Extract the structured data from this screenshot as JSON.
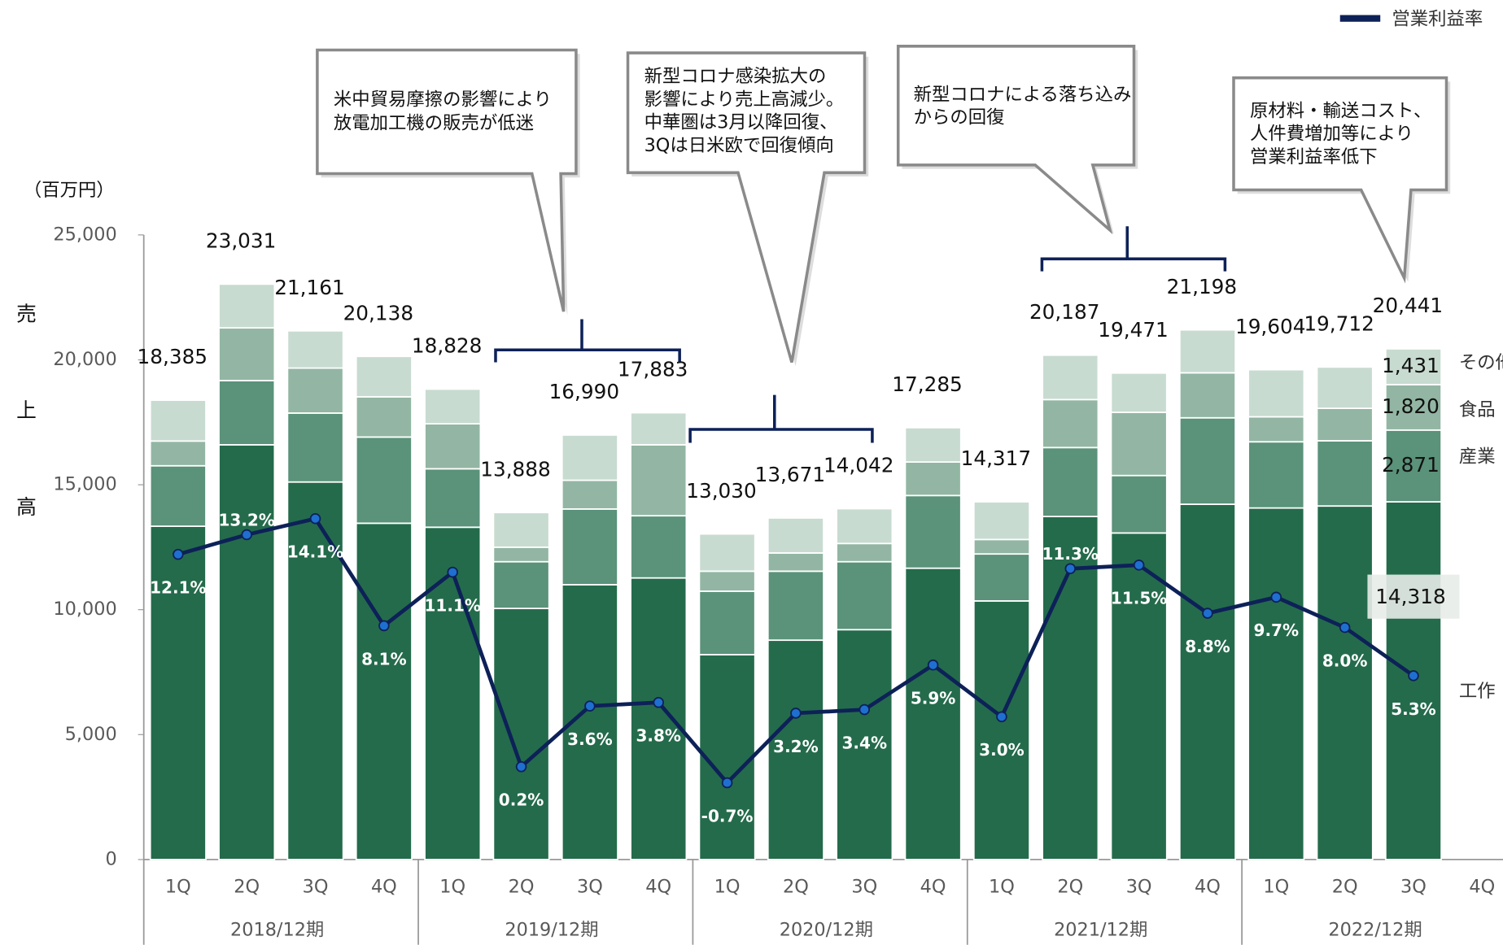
{
  "chart_data": {
    "type": "stacked_bar_line",
    "y_axis_unit": "（百万円）",
    "y_axis_label": "売上高",
    "categories": [
      "1Q",
      "2Q",
      "3Q",
      "4Q",
      "1Q",
      "2Q",
      "3Q",
      "4Q",
      "1Q",
      "2Q",
      "3Q",
      "4Q",
      "1Q",
      "2Q",
      "3Q",
      "4Q",
      "1Q",
      "2Q",
      "3Q",
      "4Q"
    ],
    "groups": [
      "2018/12期",
      "2019/12期",
      "2020/12期",
      "2021/12期",
      "2022/12期"
    ],
    "ylim": [
      0,
      25000
    ],
    "yticks": [
      {
        "value": 0,
        "label": "0"
      },
      {
        "value": 5000,
        "label": "5,000"
      },
      {
        "value": 10000,
        "label": "10,000"
      },
      {
        "value": 15000,
        "label": "15,000"
      },
      {
        "value": 20000,
        "label": "20,000"
      },
      {
        "value": 25000,
        "label": "25,000"
      }
    ],
    "y2lim": [
      -5,
      30
    ],
    "series": [
      {
        "name": "工作",
        "color": "#246b4b",
        "values": [
          13340,
          16600,
          15110,
          13460,
          13300,
          10050,
          11000,
          11270,
          8200,
          8780,
          9200,
          11660,
          10350,
          13730,
          13070,
          14220,
          14070,
          14150,
          14318,
          null
        ],
        "value_labels": [
          null,
          null,
          null,
          null,
          null,
          null,
          null,
          null,
          null,
          null,
          null,
          null,
          null,
          null,
          null,
          null,
          null,
          null,
          "14,318",
          null
        ]
      },
      {
        "name": "産業",
        "color": "#5a927a",
        "values": [
          2420,
          2570,
          2760,
          3450,
          2340,
          1870,
          3030,
          2490,
          2540,
          2760,
          2720,
          2910,
          1880,
          2760,
          2300,
          3460,
          2650,
          2610,
          2871,
          null
        ],
        "value_labels": [
          null,
          null,
          null,
          null,
          null,
          null,
          null,
          null,
          null,
          null,
          null,
          null,
          null,
          null,
          null,
          null,
          null,
          null,
          "2,871",
          null
        ]
      },
      {
        "name": "食品",
        "color": "#92b6a3",
        "values": [
          990,
          2110,
          1800,
          1610,
          1800,
          580,
          1150,
          2840,
          800,
          730,
          730,
          1340,
          580,
          1920,
          2530,
          1800,
          1000,
          1300,
          1820,
          null
        ],
        "value_labels": [
          null,
          null,
          null,
          null,
          null,
          null,
          null,
          null,
          null,
          null,
          null,
          null,
          null,
          null,
          null,
          null,
          null,
          null,
          "1,820",
          null
        ]
      },
      {
        "name": "その他",
        "color": "#c8dbd1",
        "values": [
          1635,
          1751,
          1491,
          1618,
          1388,
          1388,
          1810,
          1283,
          1490,
          1401,
          1392,
          1375,
          1507,
          1777,
          1571,
          1718,
          1884,
          1652,
          1431,
          null
        ],
        "value_labels": [
          null,
          null,
          null,
          null,
          null,
          null,
          null,
          null,
          null,
          null,
          null,
          null,
          null,
          null,
          null,
          null,
          null,
          null,
          "1,431",
          null
        ]
      },
      {
        "name": "営業利益率",
        "color": "#0d2158",
        "marker_color": "#1f6fd0",
        "axis": "y2",
        "type": "line",
        "values": [
          12.1,
          13.2,
          14.1,
          8.1,
          11.1,
          0.2,
          3.6,
          3.8,
          -0.7,
          3.2,
          3.4,
          5.9,
          3.0,
          11.3,
          11.5,
          8.8,
          9.7,
          8.0,
          5.3,
          null
        ],
        "value_labels": [
          "12.1%",
          "13.2%",
          "14.1%",
          "8.1%",
          "11.1%",
          "0.2%",
          "3.6%",
          "3.8%",
          "-0.7%",
          "3.2%",
          "3.4%",
          "5.9%",
          "3.0%",
          "11.3%",
          "11.5%",
          "8.8%",
          "9.7%",
          "8.0%",
          "5.3%",
          null
        ]
      }
    ],
    "totals": {
      "values": [
        18385,
        23031,
        21161,
        20138,
        18828,
        13888,
        16990,
        17883,
        13030,
        13671,
        14042,
        17285,
        14317,
        20187,
        19471,
        21198,
        19604,
        19712,
        20441,
        null
      ],
      "value_labels": [
        "18,385",
        "23,031",
        "21,161",
        "20,138",
        "18,828",
        "13,888",
        "16,990",
        "17,883",
        "13,030",
        "13,671",
        "14,042",
        "17,285",
        "14,317",
        "20,187",
        "19,471",
        "21,198",
        "19,604",
        "19,712",
        "20,441",
        null
      ]
    },
    "legend": "top-right",
    "annotations": [
      {
        "lines": [
          "米中貿易摩擦の影響により",
          "放電加工機の販売が低迷"
        ]
      },
      {
        "lines": [
          "新型コロナ感染拡大の",
          "影響により売上高減少。",
          "中華圏は3月以降回復、",
          "3Qは日米欧で回復傾向"
        ]
      },
      {
        "lines": [
          "新型コロナによる落ち込み",
          "からの回復"
        ]
      },
      {
        "lines": [
          "原材料・輸送コスト、",
          "人件費増加等により",
          "営業利益率低下"
        ]
      }
    ]
  }
}
